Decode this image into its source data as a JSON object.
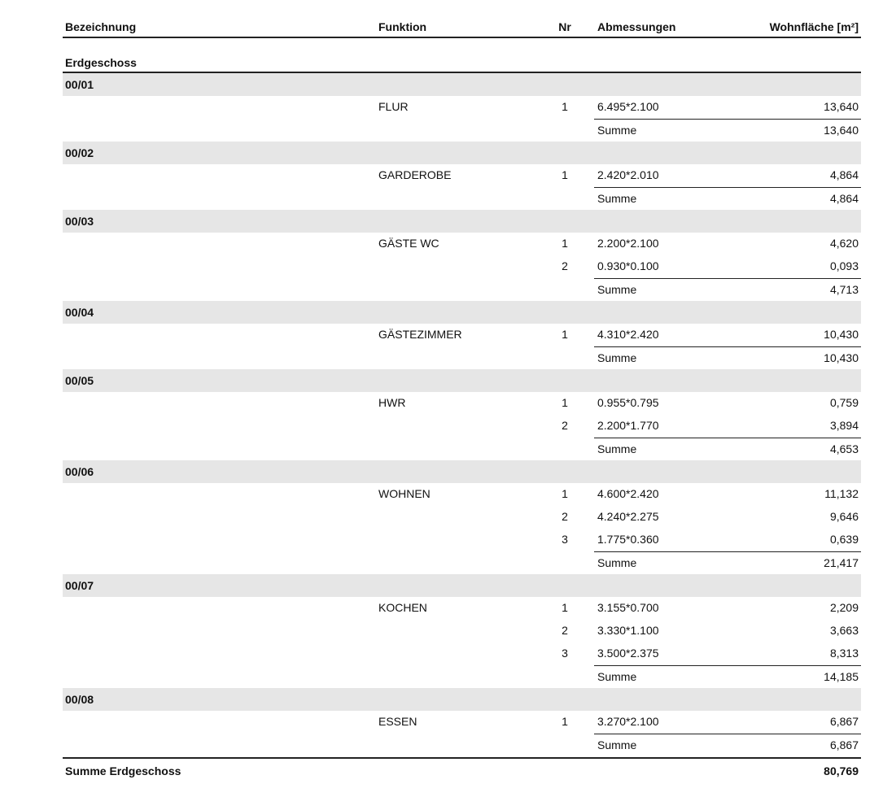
{
  "header": {
    "columns": [
      "Bezeichnung",
      "Funktion",
      "Nr",
      "Abmessungen",
      "Wohnfläche [m²]"
    ]
  },
  "section": {
    "title": "Erdgeschoss",
    "rooms": [
      {
        "id": "00/01",
        "funktion": "FLUR",
        "items": [
          {
            "nr": "1",
            "dim": "6.495*2.100",
            "area": "13,640"
          }
        ],
        "sum_label": "Summe",
        "sum": "13,640"
      },
      {
        "id": "00/02",
        "funktion": "GARDEROBE",
        "items": [
          {
            "nr": "1",
            "dim": "2.420*2.010",
            "area": "4,864"
          }
        ],
        "sum_label": "Summe",
        "sum": "4,864"
      },
      {
        "id": "00/03",
        "funktion": "GÄSTE WC",
        "items": [
          {
            "nr": "1",
            "dim": "2.200*2.100",
            "area": "4,620"
          },
          {
            "nr": "2",
            "dim": "0.930*0.100",
            "area": "0,093"
          }
        ],
        "sum_label": "Summe",
        "sum": "4,713"
      },
      {
        "id": "00/04",
        "funktion": "GÄSTEZIMMER",
        "items": [
          {
            "nr": "1",
            "dim": "4.310*2.420",
            "area": "10,430"
          }
        ],
        "sum_label": "Summe",
        "sum": "10,430"
      },
      {
        "id": "00/05",
        "funktion": "HWR",
        "items": [
          {
            "nr": "1",
            "dim": "0.955*0.795",
            "area": "0,759"
          },
          {
            "nr": "2",
            "dim": "2.200*1.770",
            "area": "3,894"
          }
        ],
        "sum_label": "Summe",
        "sum": "4,653"
      },
      {
        "id": "00/06",
        "funktion": "WOHNEN",
        "items": [
          {
            "nr": "1",
            "dim": "4.600*2.420",
            "area": "11,132"
          },
          {
            "nr": "2",
            "dim": "4.240*2.275",
            "area": "9,646"
          },
          {
            "nr": "3",
            "dim": "1.775*0.360",
            "area": "0,639"
          }
        ],
        "sum_label": "Summe",
        "sum": "21,417"
      },
      {
        "id": "00/07",
        "funktion": "KOCHEN",
        "items": [
          {
            "nr": "1",
            "dim": "3.155*0.700",
            "area": "2,209"
          },
          {
            "nr": "2",
            "dim": "3.330*1.100",
            "area": "3,663"
          },
          {
            "nr": "3",
            "dim": "3.500*2.375",
            "area": "8,313"
          }
        ],
        "sum_label": "Summe",
        "sum": "14,185"
      },
      {
        "id": "00/08",
        "funktion": "ESSEN",
        "items": [
          {
            "nr": "1",
            "dim": "3.270*2.100",
            "area": "6,867"
          }
        ],
        "sum_label": "Summe",
        "sum": "6,867"
      }
    ],
    "total": {
      "label": "Summe Erdgeschoss",
      "value": "80,769"
    }
  }
}
